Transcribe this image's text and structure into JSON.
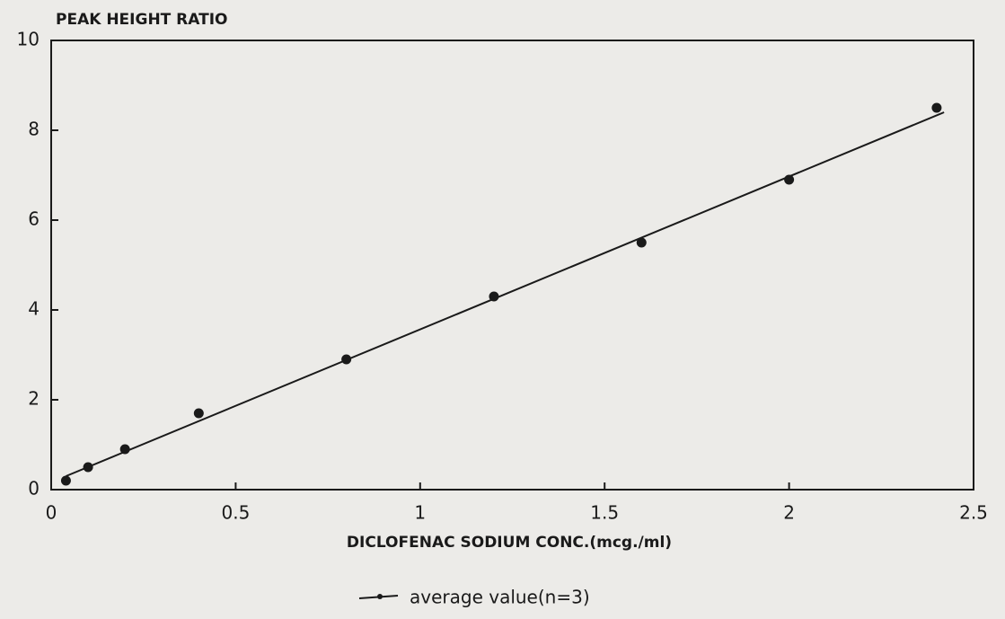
{
  "chart_data": {
    "type": "scatter",
    "title": "PEAK HEIGHT RATIO",
    "x_label": "DICLOFENAC SODIUM CONC.(mcg./ml)",
    "series": [
      {
        "name": "average value(n=3)",
        "color": "#1a1a1a",
        "x": [
          0.04,
          0.1,
          0.2,
          0.4,
          0.8,
          1.2,
          1.6,
          2.0,
          2.4
        ],
        "values": [
          0.2,
          0.5,
          0.9,
          1.7,
          2.9,
          4.3,
          5.5,
          6.9,
          8.5
        ]
      }
    ],
    "fit_line": {
      "x": [
        0.04,
        2.42
      ],
      "values": [
        0.3,
        8.4
      ]
    },
    "xlim": [
      0,
      2.5
    ],
    "xticks": [
      0,
      0.5,
      1,
      1.5,
      2,
      2.5
    ],
    "ylim": [
      0,
      10
    ],
    "yticks": [
      0,
      2,
      4,
      6,
      8,
      10
    ],
    "grid": false,
    "legend": "bottom"
  }
}
